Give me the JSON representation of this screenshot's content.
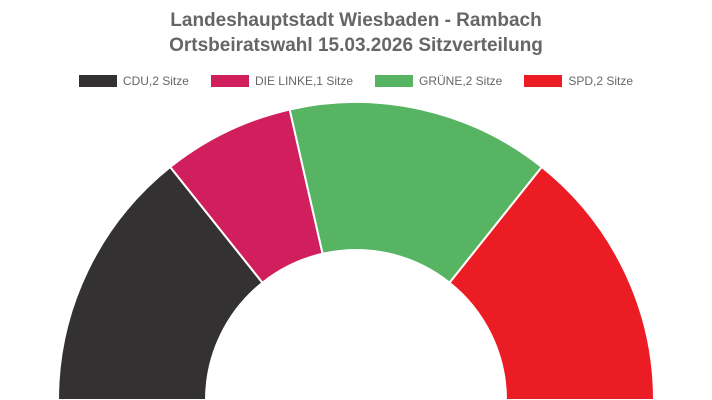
{
  "chart_data": {
    "type": "pie",
    "subtype": "semicircle-parliament",
    "title": "Landeshauptstadt Wiesbaden - Rambach",
    "subtitle": "Ortsbeiratswahl 15.03.2026 Sitzverteilung",
    "legend_position": "top",
    "series": [
      {
        "name": "CDU",
        "value": 2,
        "label": "CDU,2 Sitze",
        "color": "#333132"
      },
      {
        "name": "DIE LINKE",
        "value": 1,
        "label": "DIE LINKE,1 Sitze",
        "color": "#d11f5e"
      },
      {
        "name": "GRÜNE",
        "value": 2,
        "label": "GRÜNE,2 Sitze",
        "color": "#56b462"
      },
      {
        "name": "SPD",
        "value": 2,
        "label": "SPD,2 Sitze",
        "color": "#ec1c24"
      }
    ]
  }
}
